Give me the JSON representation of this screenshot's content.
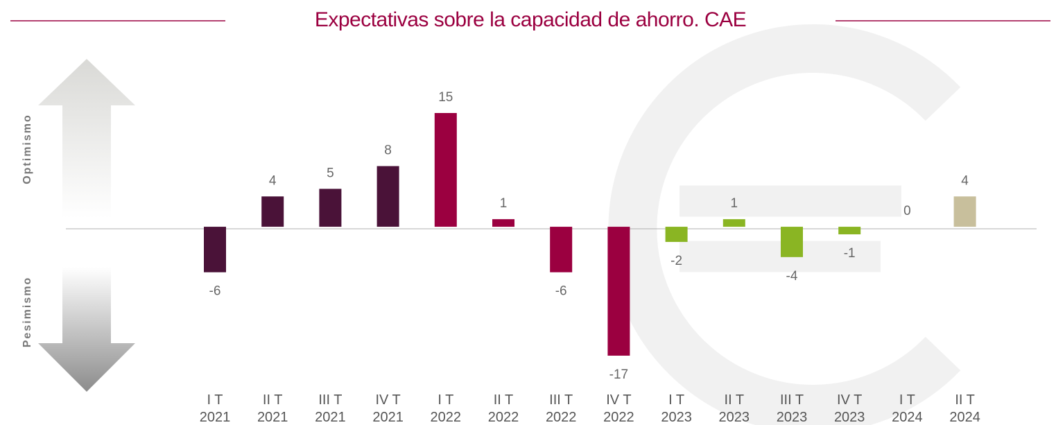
{
  "chart_data": {
    "type": "bar",
    "title": "Expectativas sobre la capacidad de ahorro. CAE",
    "upper_label": "Optimismo",
    "lower_label": "Pesimismo",
    "categories": [
      "I T\n2021",
      "II T\n2021",
      "III T\n2021",
      "IV T\n2021",
      "I T\n2022",
      "II T\n2022",
      "III T\n2022",
      "IV T\n2022",
      "I T\n2023",
      "II T\n2023",
      "III T\n2023",
      "IV T\n2023",
      "I T\n2024",
      "II T\n2024"
    ],
    "values": [
      -6,
      4,
      5,
      8,
      15,
      1,
      -6,
      -17,
      -2,
      1,
      -4,
      -1,
      0,
      4
    ],
    "colors": [
      "#4a1238",
      "#4a1238",
      "#4a1238",
      "#4a1238",
      "#9b0040",
      "#9b0040",
      "#9b0040",
      "#9b0040",
      "#8ab523",
      "#8ab523",
      "#8ab523",
      "#8ab523",
      "#c8bf9c",
      "#c8bf9c"
    ]
  }
}
